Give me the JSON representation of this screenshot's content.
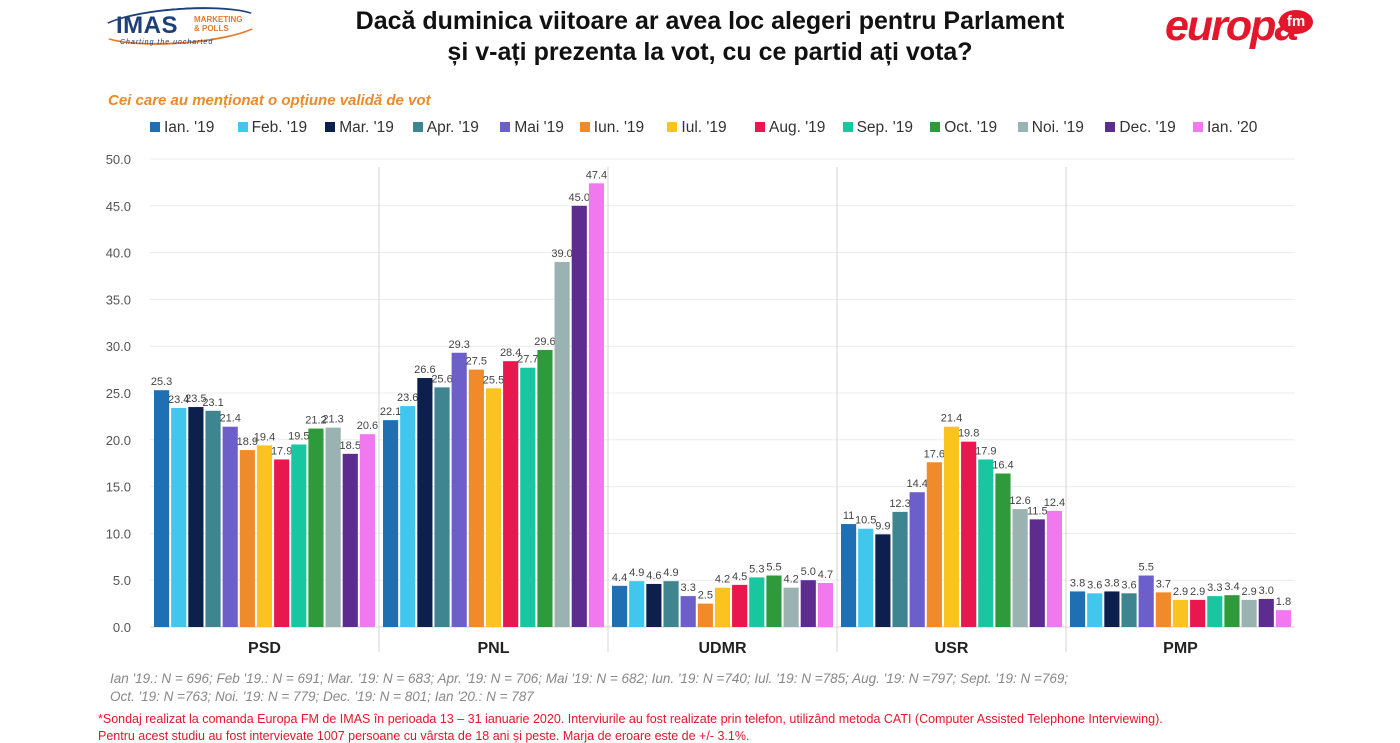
{
  "header": {
    "imas_logo": {
      "name": "IMAS",
      "sub_line1": "MARKETING",
      "sub_line2": "& POLLS",
      "tagline": "Charting the uncharted"
    },
    "title_line1": "Dacă duminica viitoare ar avea loc alegeri pentru Parlament",
    "title_line2": "și v-ați prezenta la vot, cu ce partid ați vota?",
    "europa_logo": {
      "text": "europa",
      "badge": "fm",
      "color": "#e3162b"
    }
  },
  "subtitle": "Cei care au menționat o opțiune validă de vot",
  "chart_data": {
    "type": "bar",
    "categories": [
      "PSD",
      "PNL",
      "UDMR",
      "USR",
      "PMP"
    ],
    "ylim": [
      0,
      50
    ],
    "yticks": [
      "0.0",
      "5.0",
      "10.0",
      "15.0",
      "20.0",
      "25.0",
      "30.0",
      "35.0",
      "40.0",
      "45.0",
      "50.0"
    ],
    "grid": true,
    "legend_position": "top",
    "series": [
      {
        "name": "Ian. '19",
        "color": "#1f6fb2",
        "values": [
          25.3,
          22.1,
          4.4,
          11,
          3.8
        ],
        "labels": [
          "25.3",
          "22.1",
          "4.4",
          "11",
          "3.8"
        ]
      },
      {
        "name": "Feb. '19",
        "color": "#41c6ee",
        "values": [
          23.4,
          23.6,
          4.9,
          10.5,
          3.6
        ],
        "labels": [
          "23.4",
          "23.6",
          "4.9",
          "10.5",
          "3.6"
        ]
      },
      {
        "name": "Mar. '19",
        "color": "#0d1f4c",
        "values": [
          23.5,
          26.6,
          4.6,
          9.9,
          3.8
        ],
        "labels": [
          "23.5",
          "26.6",
          "4.6",
          "9.9",
          "3.8"
        ]
      },
      {
        "name": "Apr. '19",
        "color": "#3f858f",
        "values": [
          23.1,
          25.6,
          4.9,
          12.3,
          3.6
        ],
        "labels": [
          "23.1",
          "25.6",
          "4.9",
          "12.3",
          "3.6"
        ]
      },
      {
        "name": "Mai '19",
        "color": "#6c5fc9",
        "values": [
          21.4,
          29.3,
          3.3,
          14.4,
          5.5
        ],
        "labels": [
          "21.4",
          "29.3",
          "3.3",
          "14.4",
          "5.5"
        ]
      },
      {
        "name": "Iun. '19",
        "color": "#f08a2b",
        "values": [
          18.9,
          27.5,
          2.5,
          17.6,
          3.7
        ],
        "labels": [
          "18.9",
          "27.5",
          "2.5",
          "17.6",
          "3.7"
        ]
      },
      {
        "name": "Iul. '19",
        "color": "#fbc31f",
        "values": [
          19.4,
          25.5,
          4.2,
          21.4,
          2.9
        ],
        "labels": [
          "19.4",
          "25.5",
          "4.2",
          "21.4",
          "2.9"
        ]
      },
      {
        "name": "Aug. '19",
        "color": "#e8184f",
        "values": [
          17.9,
          28.4,
          4.5,
          19.8,
          2.9
        ],
        "labels": [
          "17.9",
          "28.4",
          "4.5",
          "19.8",
          "2.9"
        ]
      },
      {
        "name": "Sep. '19",
        "color": "#18c79f",
        "values": [
          19.5,
          27.7,
          5.3,
          17.9,
          3.3
        ],
        "labels": [
          "19.5",
          "27.7",
          "5.3",
          "17.9",
          "3.3"
        ]
      },
      {
        "name": "Oct. '19",
        "color": "#2e9a3c",
        "values": [
          21.2,
          29.6,
          5.5,
          16.4,
          3.4
        ],
        "labels": [
          "21.2",
          "29.6",
          "5.5",
          "16.4",
          "3.4"
        ]
      },
      {
        "name": "Noi. '19",
        "color": "#9bb2b2",
        "values": [
          21.3,
          39.0,
          4.2,
          12.6,
          2.9
        ],
        "labels": [
          "21.3",
          "39.0",
          "4.2",
          "12.6",
          "2.9"
        ]
      },
      {
        "name": "Dec. '19",
        "color": "#5c2c8f",
        "values": [
          18.5,
          45.0,
          5.0,
          11.5,
          3.0
        ],
        "labels": [
          "18.5",
          "45.0",
          "5.0",
          "11.5",
          "3.0"
        ]
      },
      {
        "name": "Ian. '20",
        "color": "#f278f0",
        "values": [
          20.6,
          47.4,
          4.7,
          12.4,
          1.8
        ],
        "labels": [
          "20.6",
          "47.4",
          "4.7",
          "12.4",
          "1.8"
        ]
      }
    ]
  },
  "sample_notes": {
    "line1": "Ian '19.: N = 696; Feb '19.: N = 691; Mar. '19: N = 683; Apr. '19: N = 706; Mai '19: N = 682; Iun. '19: N =740; Iul. '19: N =785; Aug. '19: N =797; Sept. '19: N =769;",
    "line2": "Oct. '19: N =763; Noi. '19: N = 779; Dec. '19: N = 801; Ian '20.: N = 787"
  },
  "footnote": {
    "line1": "*Sondaj realizat la comanda Europa FM de IMAS în perioada 13 – 31 ianuarie 2020. Interviurile au fost realizate prin telefon, utilizând metoda CATI (Computer Assisted Telephone Interviewing).",
    "line2": "Pentru acest studiu au fost intervievate 1007 persoane cu vârsta de 18 ani și peste. Marja de eroare este de +/- 3.1%."
  }
}
